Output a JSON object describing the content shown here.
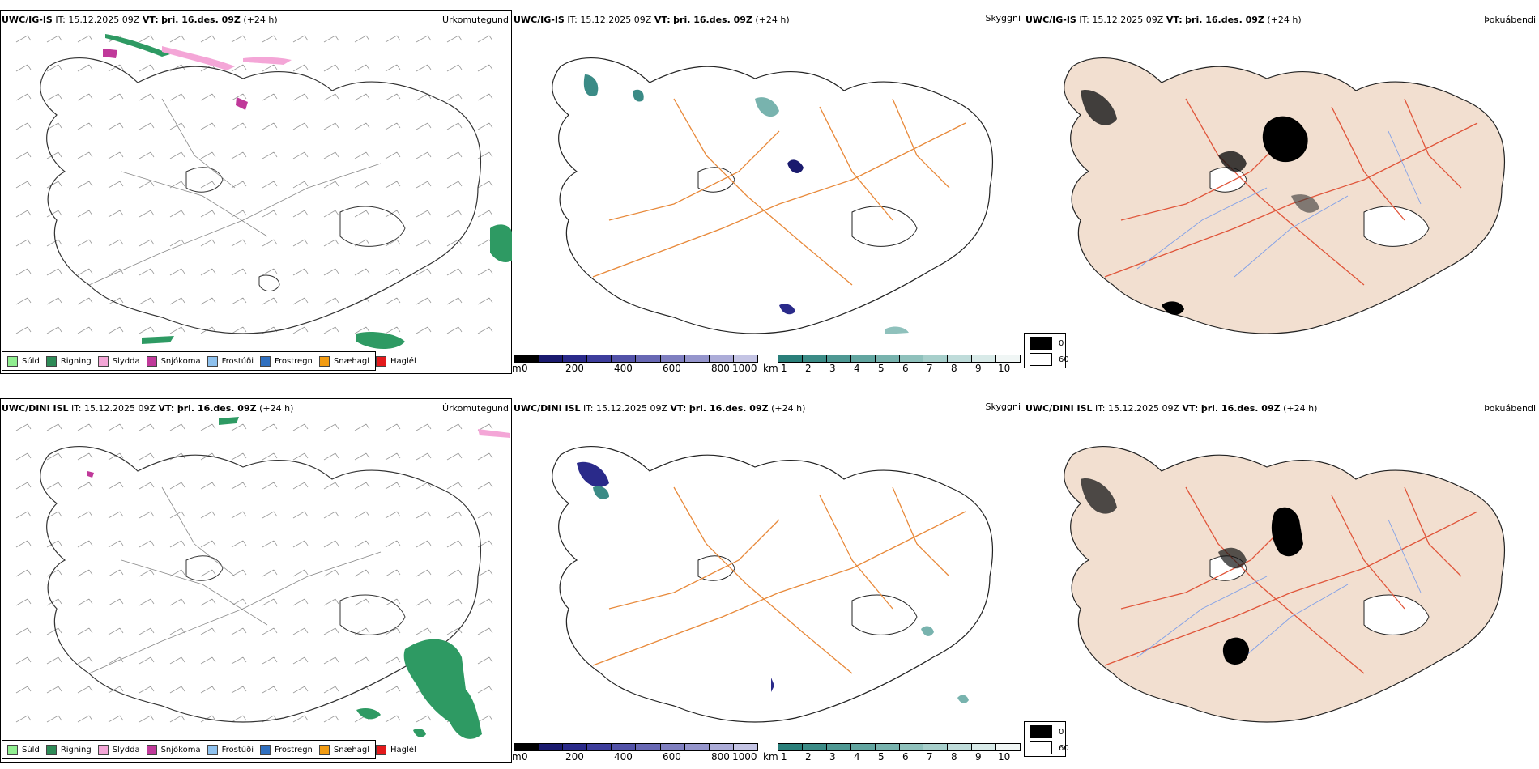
{
  "rows": [
    {
      "model": "UWC/IG-IS",
      "it_label": "IT: 15.12.2025 09Z",
      "vt_label": "VT:",
      "vt_value": "þri. 16.des. 09Z",
      "lead": "(+24 h)"
    },
    {
      "model": "UWC/DINI ISL",
      "it_label": "IT: 15.12.2025 09Z",
      "vt_label": "VT:",
      "vt_value": "þri. 16.des. 09Z",
      "lead": "(+24 h)"
    }
  ],
  "panel_titles": {
    "precip": "Úrkomutegund",
    "visibility": "Skyggni",
    "fog": "Þokuábendi"
  },
  "precip_legend": [
    {
      "label": "Súld",
      "color": "#90ee90"
    },
    {
      "label": "Rigning",
      "color": "#2e8b57"
    },
    {
      "label": "Slydda",
      "color": "#f4a6d7"
    },
    {
      "label": "Snjókoma",
      "color": "#c0399a"
    },
    {
      "label": "Frostúði",
      "color": "#8ec1ee"
    },
    {
      "label": "Frostregn",
      "color": "#2f6fbf"
    },
    {
      "label": "Snæhagl",
      "color": "#f39c12"
    },
    {
      "label": "Haglél",
      "color": "#e31a1c"
    }
  ],
  "cloudbase_scale": {
    "unit": "m",
    "ticks": [
      "0",
      "200",
      "400",
      "600",
      "800",
      "1000"
    ],
    "colors": [
      "#000000",
      "#1a1a6e",
      "#2a2a8a",
      "#3d3d9c",
      "#5252a8",
      "#6868b4",
      "#7f7fc0",
      "#9595cc",
      "#acacd8",
      "#c4c4e4"
    ]
  },
  "visibility_scale": {
    "unit": "km",
    "ticks": [
      "1",
      "2",
      "3",
      "4",
      "5",
      "6",
      "7",
      "8",
      "9",
      "10"
    ],
    "colors": [
      "#2a7f7a",
      "#3b8b86",
      "#4e9893",
      "#62a5a0",
      "#78b3ae",
      "#8fc1bc",
      "#a7cfcb",
      "#bfdcda",
      "#d8eae8",
      "#f0f6f5"
    ]
  },
  "fog_scale": {
    "entries": [
      {
        "label": "0",
        "color": "#000000"
      },
      {
        "label": "60",
        "color": "#ffffff"
      }
    ]
  },
  "colors": {
    "roads_orange": "#e8893a",
    "roads_red": "#e0553a",
    "land_fog": "#f2dfd0",
    "rivers": "#7f9fe8",
    "rain_green": "#2e9a63",
    "snow_magenta": "#c0399a",
    "sleet_pink": "#f4a6d7"
  }
}
